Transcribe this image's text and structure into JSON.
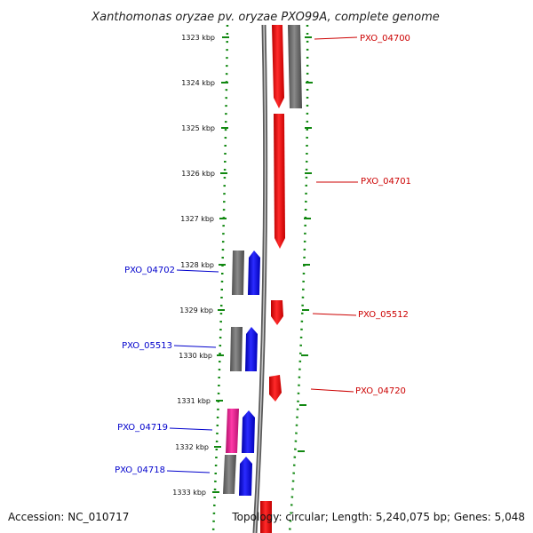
{
  "title": "Xanthomonas oryzae pv. oryzae PXO99A, complete genome",
  "footer": {
    "accession": "Accession: NC_010717",
    "summary": "Topology: circular; Length: 5,240,075 bp; Genes: 5,048"
  },
  "ticks": [
    "1323 kbp",
    "1324 kbp",
    "1325 kbp",
    "1326 kbp",
    "1327 kbp",
    "1328 kbp",
    "1329 kbp",
    "1330 kbp",
    "1331 kbp",
    "1332 kbp",
    "1333 kbp"
  ],
  "colors": {
    "forward_cds": "#ff0000",
    "reverse_cds": "#0000ff",
    "gene": "#707070",
    "rna": "#e8208a",
    "forward_label": "#cc0000",
    "reverse_label": "#0000cc",
    "dotted_ring": "#118811",
    "backbone": "#888888"
  },
  "labels": {
    "right": [
      "PXO_04700",
      "PXO_04701",
      "PXO_05512",
      "PXO_04720"
    ],
    "left": [
      "PXO_04702",
      "PXO_05513",
      "PXO_04719",
      "PXO_04718"
    ]
  }
}
